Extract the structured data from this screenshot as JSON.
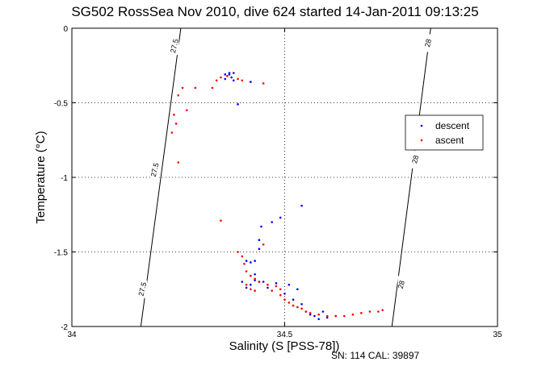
{
  "chart_data": {
    "type": "scatter",
    "title": "SG502 RossSea Nov 2010, dive 624 started 14-Jan-2011 09:13:25",
    "xlabel": "Salinity (S [PSS-78])",
    "ylabel": "Temperature (°C)",
    "xlim": [
      34,
      35
    ],
    "ylim": [
      -2,
      0
    ],
    "x_ticks": [
      "34",
      "34.5",
      "35"
    ],
    "y_ticks": [
      "0",
      "-0.5",
      "-1",
      "-1.5",
      "-2"
    ],
    "grid": true,
    "legend_position": "right",
    "footer": "SN: 114  CAL: 39897",
    "isopycnals": [
      {
        "label": "27.5",
        "points": [
          [
            34.256,
            0
          ],
          [
            34.162,
            -2
          ]
        ]
      },
      {
        "label": "28",
        "points": [
          [
            34.843,
            0
          ],
          [
            34.752,
            -2
          ]
        ]
      }
    ],
    "isopycnal_labels": [
      {
        "text": "27.5",
        "x": 34.242,
        "y": -0.12
      },
      {
        "text": "27.5",
        "x": 34.196,
        "y": -0.95
      },
      {
        "text": "27.5",
        "x": 34.167,
        "y": -1.75
      },
      {
        "text": "28",
        "x": 34.838,
        "y": -0.1
      },
      {
        "text": "28",
        "x": 34.808,
        "y": -0.88
      },
      {
        "text": "28",
        "x": 34.775,
        "y": -1.72
      }
    ],
    "series": [
      {
        "name": "descent",
        "color": "#0000ff",
        "points": [
          [
            34.36,
            -0.31
          ],
          [
            34.37,
            -0.3
          ],
          [
            34.38,
            -0.3
          ],
          [
            34.37,
            -0.31
          ],
          [
            34.375,
            -0.33
          ],
          [
            34.38,
            -0.35
          ],
          [
            34.36,
            -0.34
          ],
          [
            34.39,
            -0.51
          ],
          [
            34.42,
            -0.36
          ],
          [
            34.54,
            -1.19
          ],
          [
            34.49,
            -1.27
          ],
          [
            34.47,
            -1.3
          ],
          [
            34.445,
            -1.33
          ],
          [
            34.44,
            -1.42
          ],
          [
            34.44,
            -1.48
          ],
          [
            34.43,
            -1.56
          ],
          [
            34.42,
            -1.57
          ],
          [
            34.41,
            -1.56
          ],
          [
            34.43,
            -1.65
          ],
          [
            34.44,
            -1.7
          ],
          [
            34.45,
            -1.7
          ],
          [
            34.42,
            -1.72
          ],
          [
            34.43,
            -1.69
          ],
          [
            34.46,
            -1.74
          ],
          [
            34.48,
            -1.71
          ],
          [
            34.51,
            -1.72
          ],
          [
            34.53,
            -1.75
          ],
          [
            34.54,
            -1.85
          ],
          [
            34.55,
            -1.9
          ],
          [
            34.57,
            -1.93
          ],
          [
            34.58,
            -1.95
          ],
          [
            34.6,
            -1.94
          ],
          [
            34.62,
            -1.93
          ],
          [
            34.56,
            -1.92
          ],
          [
            34.59,
            -1.9
          ],
          [
            34.52,
            -1.82
          ],
          [
            34.5,
            -1.78
          ],
          [
            34.41,
            -1.74
          ],
          [
            34.4,
            -1.7
          ]
        ]
      },
      {
        "name": "ascent",
        "color": "#ff0000",
        "points": [
          [
            34.33,
            -0.4
          ],
          [
            34.34,
            -0.35
          ],
          [
            34.35,
            -0.33
          ],
          [
            34.365,
            -0.32
          ],
          [
            34.39,
            -0.34
          ],
          [
            34.4,
            -0.35
          ],
          [
            34.45,
            -0.37
          ],
          [
            34.29,
            -0.4
          ],
          [
            34.26,
            -0.4
          ],
          [
            34.25,
            -0.45
          ],
          [
            34.27,
            -0.55
          ],
          [
            34.24,
            -0.58
          ],
          [
            34.245,
            -0.64
          ],
          [
            34.235,
            -0.7
          ],
          [
            34.25,
            -0.9
          ],
          [
            34.35,
            -1.29
          ],
          [
            34.45,
            -1.45
          ],
          [
            34.39,
            -1.5
          ],
          [
            34.4,
            -1.53
          ],
          [
            34.405,
            -1.58
          ],
          [
            34.41,
            -1.63
          ],
          [
            34.42,
            -1.66
          ],
          [
            34.43,
            -1.68
          ],
          [
            34.44,
            -1.7
          ],
          [
            34.46,
            -1.72
          ],
          [
            34.47,
            -1.76
          ],
          [
            34.49,
            -1.79
          ],
          [
            34.5,
            -1.82
          ],
          [
            34.51,
            -1.84
          ],
          [
            34.52,
            -1.86
          ],
          [
            34.53,
            -1.87
          ],
          [
            34.54,
            -1.88
          ],
          [
            34.55,
            -1.9
          ],
          [
            34.56,
            -1.91
          ],
          [
            34.58,
            -1.92
          ],
          [
            34.6,
            -1.93
          ],
          [
            34.62,
            -1.93
          ],
          [
            34.64,
            -1.93
          ],
          [
            34.66,
            -1.92
          ],
          [
            34.68,
            -1.91
          ],
          [
            34.7,
            -1.9
          ],
          [
            34.72,
            -1.9
          ],
          [
            34.73,
            -1.89
          ],
          [
            34.41,
            -1.72
          ],
          [
            34.42,
            -1.75
          ],
          [
            34.43,
            -1.76
          ],
          [
            34.48,
            -1.73
          ],
          [
            34.49,
            -1.75
          ]
        ]
      }
    ]
  }
}
